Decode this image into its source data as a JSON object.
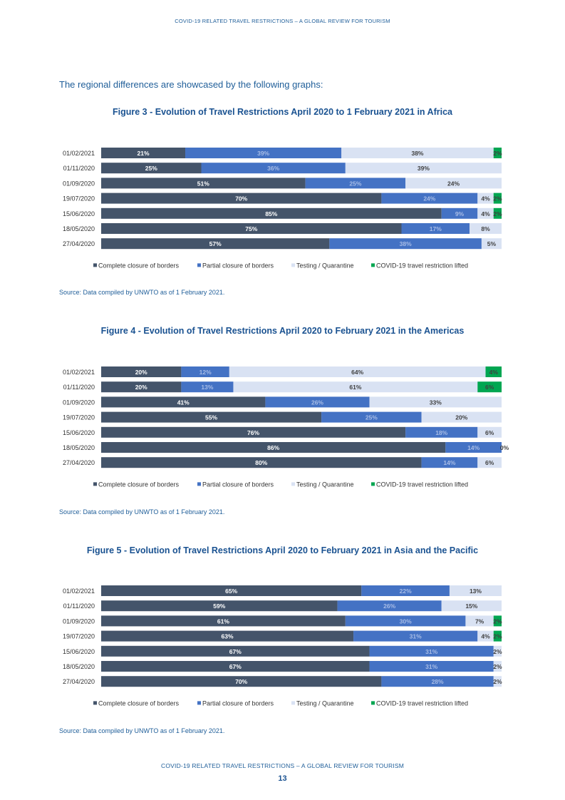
{
  "page": {
    "header": "COVID-19 RELATED TRAVEL RESTRICTIONS – A GLOBAL REVIEW FOR TOURISM",
    "intro": "The regional differences are showcased by the following graphs:",
    "footer": "COVID-19 RELATED TRAVEL RESTRICTIONS – A GLOBAL REVIEW FOR TOURISM",
    "page_number": "13"
  },
  "colors": {
    "complete": "#44546a",
    "partial": "#4472c4",
    "testing": "#d9e2f3",
    "lifted": "#00a651",
    "dark_label": "#ffffff",
    "partial_label": "#a9bde6",
    "light_label": "#404040"
  },
  "chart_data": [
    {
      "type": "bar",
      "stacked": "horizontal-100%",
      "title": "Figure 3 - Evolution of Travel Restrictions April 2020 to 1 February 2021 in Africa",
      "source": "Source: Data compiled by UNWTO as of 1 February 2021.",
      "categories": [
        "01/02/2021",
        "01/11/2020",
        "01/09/2020",
        "19/07/2020",
        "15/06/2020",
        "18/05/2020",
        "27/04/2020"
      ],
      "series": [
        {
          "name": "Complete closure of borders",
          "key": "complete",
          "values": [
            21,
            25,
            51,
            70,
            85,
            75,
            57
          ]
        },
        {
          "name": "Partial closure of borders",
          "key": "partial",
          "values": [
            39,
            36,
            25,
            24,
            9,
            17,
            38
          ]
        },
        {
          "name": "Testing / Quarantine",
          "key": "testing",
          "values": [
            38,
            39,
            24,
            4,
            4,
            8,
            5
          ]
        },
        {
          "name": "COVID-19 travel restriction lifted",
          "key": "lifted",
          "values": [
            2,
            0,
            0,
            2,
            2,
            0,
            0
          ]
        }
      ]
    },
    {
      "type": "bar",
      "stacked": "horizontal-100%",
      "title": "Figure 4 - Evolution of Travel Restrictions April 2020 to February 2021 in the Americas",
      "source": "Source: Data compiled by UNWTO as of 1 February 2021.",
      "categories": [
        "01/02/2021",
        "01/11/2020",
        "01/09/2020",
        "19/07/2020",
        "15/06/2020",
        "18/05/2020",
        "27/04/2020"
      ],
      "series": [
        {
          "name": "Complete closure of borders",
          "key": "complete",
          "values": [
            20,
            20,
            41,
            55,
            76,
            86,
            80
          ]
        },
        {
          "name": "Partial closure of borders",
          "key": "partial",
          "values": [
            12,
            13,
            26,
            25,
            18,
            14,
            14
          ]
        },
        {
          "name": "Testing / Quarantine",
          "key": "testing",
          "values": [
            64,
            61,
            33,
            20,
            6,
            0,
            6
          ]
        },
        {
          "name": "COVID-19 travel restriction lifted",
          "key": "lifted",
          "values": [
            4,
            6,
            0,
            0,
            0,
            0,
            0
          ]
        }
      ]
    },
    {
      "type": "bar",
      "stacked": "horizontal-100%",
      "title": "Figure 5 - Evolution of Travel Restrictions April 2020 to February 2021 in Asia and the Pacific",
      "source": "Source: Data compiled by UNWTO as of 1 February 2021.",
      "categories": [
        "01/02/2021",
        "01/11/2020",
        "01/09/2020",
        "19/07/2020",
        "15/06/2020",
        "18/05/2020",
        "27/04/2020"
      ],
      "series": [
        {
          "name": "Complete closure of borders",
          "key": "complete",
          "values": [
            65,
            59,
            61,
            63,
            67,
            67,
            70
          ]
        },
        {
          "name": "Partial closure of borders",
          "key": "partial",
          "values": [
            22,
            26,
            30,
            31,
            31,
            31,
            28
          ]
        },
        {
          "name": "Testing / Quarantine",
          "key": "testing",
          "values": [
            13,
            15,
            7,
            4,
            2,
            2,
            2
          ]
        },
        {
          "name": "COVID-19 travel restriction lifted",
          "key": "lifted",
          "values": [
            0,
            0,
            2,
            2,
            0,
            0,
            0
          ]
        }
      ]
    }
  ]
}
